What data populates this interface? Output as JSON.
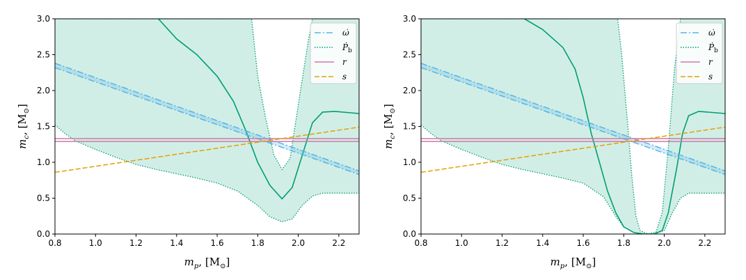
{
  "chart_data": [
    {
      "type": "line",
      "title": "",
      "xlabel": "m_p, [M_⊙]",
      "ylabel": "m_c, [M_⊙]",
      "xlim": [
        0.8,
        2.3
      ],
      "ylim": [
        0.0,
        3.0
      ],
      "xticks": [
        "0.8",
        "1.0",
        "1.2",
        "1.4",
        "1.6",
        "1.8",
        "2.0",
        "2.2"
      ],
      "yticks": [
        "0.0",
        "0.5",
        "1.0",
        "1.5",
        "2.0",
        "2.5",
        "3.0"
      ],
      "grid": false,
      "legend_position": "top-right",
      "legend": [
        "ω̇",
        "Ṗb",
        "r",
        "s"
      ],
      "series": [
        {
          "name": "ω̇",
          "style": "dash-dot",
          "color": "#56b4e9",
          "band": true,
          "x": [
            0.8,
            2.3
          ],
          "y_lower": [
            2.32,
            0.83
          ],
          "y_upper": [
            2.38,
            0.88
          ]
        },
        {
          "name": "Ṗb",
          "style": "solid-with-dotted-band",
          "color": "#009e73",
          "center": [
            [
              1.31,
              3.0
            ],
            [
              1.4,
              2.72
            ],
            [
              1.5,
              2.5
            ],
            [
              1.6,
              2.2
            ],
            [
              1.68,
              1.85
            ],
            [
              1.74,
              1.45
            ],
            [
              1.8,
              1.0
            ],
            [
              1.86,
              0.68
            ],
            [
              1.92,
              0.49
            ],
            [
              1.97,
              0.65
            ],
            [
              2.02,
              1.1
            ],
            [
              2.07,
              1.55
            ],
            [
              2.12,
              1.7
            ],
            [
              2.18,
              1.71
            ],
            [
              2.3,
              1.68
            ]
          ],
          "band_lower": [
            [
              0.8,
              1.52
            ],
            [
              0.85,
              1.4
            ],
            [
              0.9,
              1.3
            ],
            [
              1.0,
              1.18
            ],
            [
              1.1,
              1.07
            ],
            [
              1.2,
              0.97
            ],
            [
              1.3,
              0.9
            ],
            [
              1.4,
              0.84
            ],
            [
              1.5,
              0.78
            ],
            [
              1.6,
              0.71
            ],
            [
              1.7,
              0.6
            ],
            [
              1.8,
              0.4
            ],
            [
              1.86,
              0.24
            ],
            [
              1.92,
              0.17
            ],
            [
              1.97,
              0.21
            ],
            [
              2.02,
              0.4
            ],
            [
              2.07,
              0.53
            ],
            [
              2.12,
              0.57
            ],
            [
              2.3,
              0.57
            ]
          ],
          "band_upper": [
            [
              0.8,
              3.0
            ],
            [
              1.77,
              3.0
            ],
            [
              1.8,
              2.2
            ],
            [
              1.84,
              1.6
            ],
            [
              1.88,
              1.1
            ],
            [
              1.92,
              0.9
            ],
            [
              1.96,
              1.05
            ],
            [
              2.0,
              1.8
            ],
            [
              2.05,
              2.7
            ],
            [
              2.07,
              3.0
            ],
            [
              2.3,
              3.0
            ]
          ]
        },
        {
          "name": "r",
          "style": "solid-pair",
          "color": "#cc79a7",
          "x": [
            0.8,
            2.3
          ],
          "y_lower": 1.29,
          "y_upper": 1.33
        },
        {
          "name": "s",
          "style": "dashed",
          "color": "#e69f00",
          "x": [
            0.8,
            2.3
          ],
          "y": [
            0.86,
            1.49
          ]
        }
      ]
    },
    {
      "type": "line",
      "title": "",
      "xlabel": "m_p, [M_⊙]",
      "ylabel": "m_c, [M_⊙]",
      "xlim": [
        0.8,
        2.3
      ],
      "ylim": [
        0.0,
        3.0
      ],
      "xticks": [
        "0.8",
        "1.0",
        "1.2",
        "1.4",
        "1.6",
        "1.8",
        "2.0",
        "2.2"
      ],
      "yticks": [
        "0.0",
        "0.5",
        "1.0",
        "1.5",
        "2.0",
        "2.5",
        "3.0"
      ],
      "grid": false,
      "legend_position": "top-right",
      "legend": [
        "ω̇",
        "Ṗb",
        "r",
        "s"
      ],
      "series": [
        {
          "name": "ω̇",
          "style": "dash-dot",
          "color": "#56b4e9",
          "band": true,
          "x": [
            0.8,
            2.3
          ],
          "y_lower": [
            2.32,
            0.83
          ],
          "y_upper": [
            2.38,
            0.88
          ]
        },
        {
          "name": "Ṗb",
          "style": "solid-with-dotted-band",
          "color": "#009e73",
          "center": [
            [
              1.31,
              3.0
            ],
            [
              1.4,
              2.85
            ],
            [
              1.5,
              2.6
            ],
            [
              1.56,
              2.3
            ],
            [
              1.6,
              1.9
            ],
            [
              1.64,
              1.4
            ],
            [
              1.68,
              1.0
            ],
            [
              1.72,
              0.6
            ],
            [
              1.76,
              0.3
            ],
            [
              1.8,
              0.1
            ],
            [
              1.85,
              0.02
            ],
            [
              1.9,
              0.0
            ],
            [
              1.95,
              0.0
            ],
            [
              1.99,
              0.05
            ],
            [
              2.02,
              0.3
            ],
            [
              2.06,
              0.9
            ],
            [
              2.09,
              1.4
            ],
            [
              2.12,
              1.65
            ],
            [
              2.17,
              1.71
            ],
            [
              2.3,
              1.68
            ]
          ],
          "band_lower": [
            [
              0.8,
              1.52
            ],
            [
              0.85,
              1.4
            ],
            [
              0.9,
              1.3
            ],
            [
              1.0,
              1.18
            ],
            [
              1.1,
              1.07
            ],
            [
              1.2,
              0.97
            ],
            [
              1.3,
              0.9
            ],
            [
              1.4,
              0.84
            ],
            [
              1.5,
              0.78
            ],
            [
              1.6,
              0.71
            ],
            [
              1.7,
              0.52
            ],
            [
              1.76,
              0.25
            ],
            [
              1.8,
              0.1
            ],
            [
              1.85,
              0.02
            ],
            [
              1.9,
              0.0
            ],
            [
              1.95,
              0.0
            ],
            [
              2.0,
              0.05
            ],
            [
              2.04,
              0.3
            ],
            [
              2.08,
              0.5
            ],
            [
              2.12,
              0.57
            ],
            [
              2.3,
              0.57
            ]
          ],
          "band_upper": [
            [
              0.8,
              3.0
            ],
            [
              1.77,
              3.0
            ],
            [
              1.79,
              2.5
            ],
            [
              1.82,
              1.5
            ],
            [
              1.84,
              0.8
            ],
            [
              1.86,
              0.25
            ],
            [
              1.88,
              0.05
            ],
            [
              1.92,
              0.0
            ],
            [
              1.96,
              0.03
            ],
            [
              1.99,
              0.3
            ],
            [
              2.02,
              1.2
            ],
            [
              2.05,
              2.3
            ],
            [
              2.08,
              3.0
            ],
            [
              2.3,
              3.0
            ]
          ]
        },
        {
          "name": "r",
          "style": "solid-pair",
          "color": "#cc79a7",
          "x": [
            0.8,
            2.3
          ],
          "y_lower": 1.29,
          "y_upper": 1.33
        },
        {
          "name": "s",
          "style": "dashed",
          "color": "#e69f00",
          "x": [
            0.8,
            2.3
          ],
          "y": [
            0.86,
            1.49
          ]
        }
      ]
    }
  ]
}
